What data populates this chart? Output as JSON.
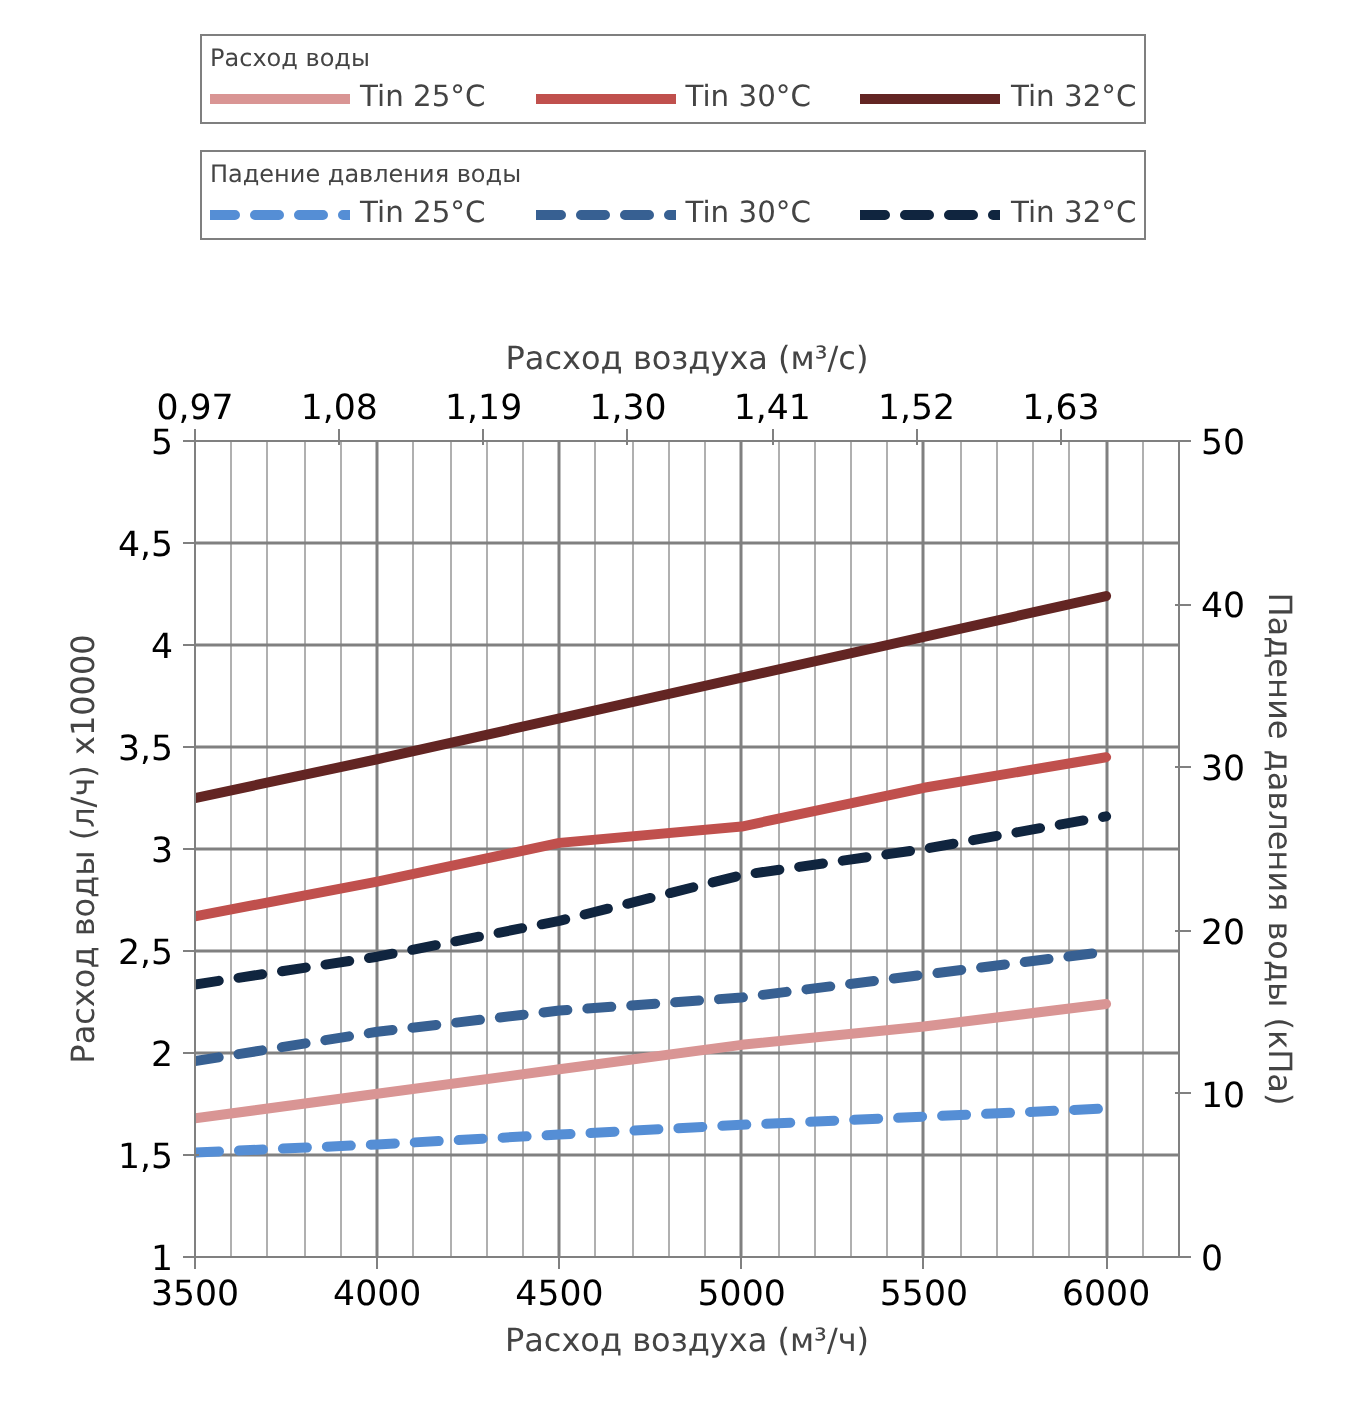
{
  "chart_data": {
    "type": "line",
    "legend_title": [
      "Расход воды",
      "Падение давления воды"
    ],
    "xlabel": "Расход воздуха (м³/ч)",
    "x2label": "Расход воздуха (м³/с)",
    "ylabel": "Расход воды (л/ч) x10000",
    "y2label": "Падение давления воды (кПа)",
    "x": [
      3500,
      4000,
      4500,
      5000,
      5500,
      6000
    ],
    "xlim": [
      3500,
      6200
    ],
    "xticks": [
      3500,
      4000,
      4500,
      5000,
      5500,
      6000
    ],
    "x2lim": [
      0.97,
      1.72
    ],
    "x2ticks": [
      {
        "value": 0.97,
        "label": "0,97"
      },
      {
        "value": 1.08,
        "label": "1,08"
      },
      {
        "value": 1.19,
        "label": "1,19"
      },
      {
        "value": 1.3,
        "label": "1,30"
      },
      {
        "value": 1.41,
        "label": "1,41"
      },
      {
        "value": 1.52,
        "label": "1,52"
      },
      {
        "value": 1.63,
        "label": "1,63"
      }
    ],
    "ylim": [
      1,
      5
    ],
    "yticks": [
      1,
      {
        "value": 1.5,
        "label": "1,5"
      },
      2,
      {
        "value": 2.5,
        "label": "2,5"
      },
      3,
      {
        "value": 3.5,
        "label": "3,5"
      },
      4,
      {
        "value": 4.5,
        "label": "4,5"
      },
      5
    ],
    "y2lim": [
      0,
      50
    ],
    "y2ticks": [
      0,
      10,
      20,
      30,
      40,
      50
    ],
    "grid": true,
    "legend": "top",
    "marker": "none",
    "series": [
      {
        "name": "Tin 25°C",
        "color": "#d99594",
        "line_style": "solid",
        "values": [
          1.68,
          1.8,
          1.92,
          2.04,
          2.13,
          2.24
        ]
      },
      {
        "name": "Tin 30°C",
        "color": "#c0504d",
        "line_style": "solid",
        "values": [
          2.67,
          2.84,
          3.03,
          3.11,
          3.3,
          3.45
        ]
      },
      {
        "name": "Tin 32°C",
        "color": "#632523",
        "line_style": "solid",
        "values": [
          3.25,
          3.44,
          3.64,
          3.84,
          4.04,
          4.24
        ]
      },
      {
        "name": "Tin 25°C",
        "color": "#558ed5",
        "line_style": "dashed",
        "axis": "y2",
        "values": [
          6.4,
          6.9,
          7.5,
          8.1,
          8.6,
          9.1
        ]
      },
      {
        "name": "Tin 30°C",
        "color": "#376092",
        "line_style": "dashed",
        "axis": "y2",
        "values": [
          12.0,
          13.8,
          15.1,
          15.9,
          17.3,
          18.7
        ]
      },
      {
        "name": "Tin 32°C",
        "color": "#10253f",
        "line_style": "dashed",
        "axis": "y2",
        "values": [
          16.7,
          18.4,
          20.6,
          23.4,
          25.0,
          27.0
        ]
      }
    ]
  }
}
